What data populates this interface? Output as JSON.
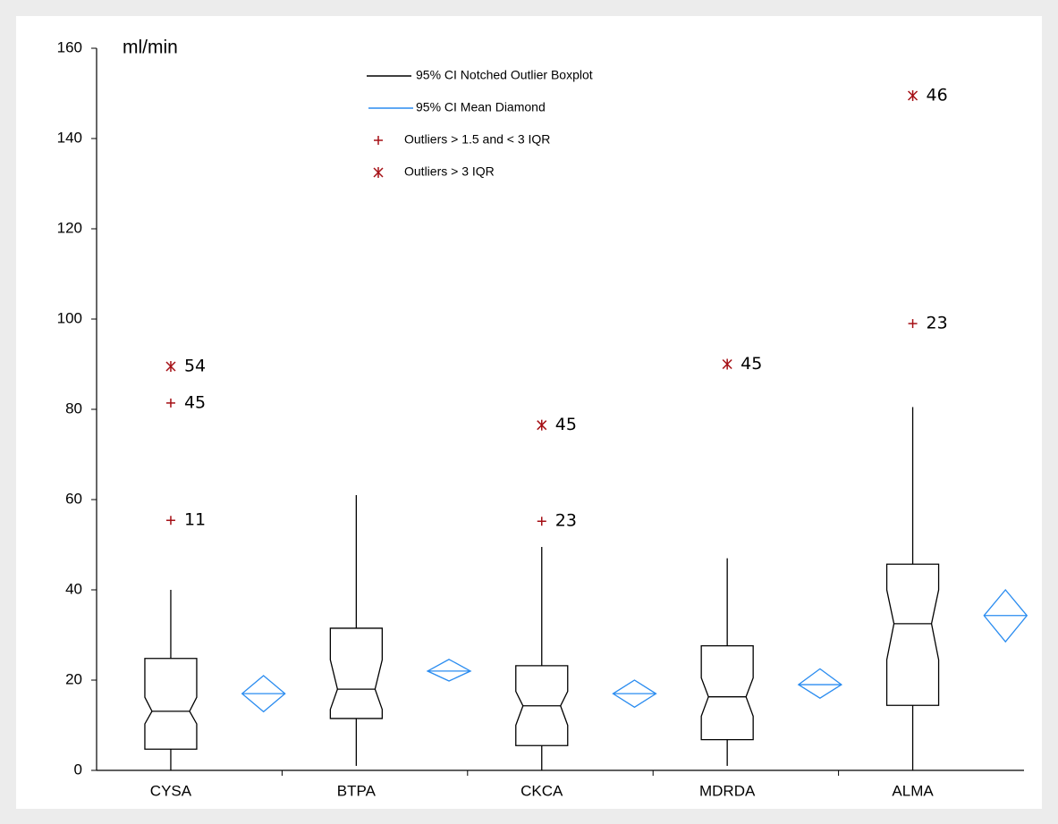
{
  "chart_data": {
    "type": "boxplot",
    "y_label": "ml/min",
    "ylim": [
      0,
      160
    ],
    "yticks": [
      0,
      20,
      40,
      60,
      80,
      100,
      120,
      140,
      160
    ],
    "colors": {
      "box": "#000000",
      "mean": "#2a8cf0",
      "outlier": "#a50f15"
    },
    "legend": [
      {
        "label": "95% CI Notched Outlier Boxplot",
        "symbol": "box"
      },
      {
        "label": "95% CI Mean Diamond",
        "symbol": "mean"
      },
      {
        "label": "Outliers > 1.5 and < 3 IQR",
        "symbol": "plus"
      },
      {
        "label": "Outliers > 3 IQR",
        "symbol": "star"
      }
    ],
    "categories": [
      "CYSA",
      "BTPA",
      "CKCA",
      "MDRDA",
      "ALMA"
    ],
    "boxes": [
      {
        "whisker_low": 0,
        "q1": 4.7,
        "notch_low": 10.3,
        "median": 13.1,
        "notch_high": 16.2,
        "q3": 24.8,
        "whisker_high": 40,
        "mean": 17,
        "mean_ci_low": 13,
        "mean_ci_high": 21,
        "outliers": [
          {
            "value": 89.5,
            "label": "54",
            "kind": "star"
          },
          {
            "value": 81.4,
            "label": "45",
            "kind": "plus"
          },
          {
            "value": 55.4,
            "label": "11",
            "kind": "plus"
          }
        ]
      },
      {
        "whisker_low": 1,
        "q1": 11.5,
        "notch_low": 13.5,
        "median": 18,
        "notch_high": 24.5,
        "q3": 31.5,
        "whisker_high": 61,
        "mean": 22,
        "mean_ci_low": 19.8,
        "mean_ci_high": 24.6,
        "outliers": []
      },
      {
        "whisker_low": 0,
        "q1": 5.5,
        "notch_low": 10,
        "median": 14.3,
        "notch_high": 17.5,
        "q3": 23.2,
        "whisker_high": 49.5,
        "mean": 17,
        "mean_ci_low": 14,
        "mean_ci_high": 20,
        "outliers": [
          {
            "value": 76.5,
            "label": "45",
            "kind": "star"
          },
          {
            "value": 55.2,
            "label": "23",
            "kind": "plus"
          }
        ]
      },
      {
        "whisker_low": 1,
        "q1": 6.8,
        "notch_low": 12,
        "median": 16.3,
        "notch_high": 20.5,
        "q3": 27.6,
        "whisker_high": 47,
        "mean": 19,
        "mean_ci_low": 16,
        "mean_ci_high": 22.5,
        "outliers": [
          {
            "value": 90,
            "label": "45",
            "kind": "star"
          }
        ]
      },
      {
        "whisker_low": 0,
        "q1": 14.4,
        "notch_low": 24.5,
        "median": 32.5,
        "notch_high": 40,
        "q3": 45.7,
        "whisker_high": 80.5,
        "mean": 34.3,
        "mean_ci_low": 28.5,
        "mean_ci_high": 40,
        "outliers": [
          {
            "value": 149.5,
            "label": "46",
            "kind": "star"
          },
          {
            "value": 99,
            "label": "23",
            "kind": "plus"
          }
        ]
      }
    ]
  }
}
